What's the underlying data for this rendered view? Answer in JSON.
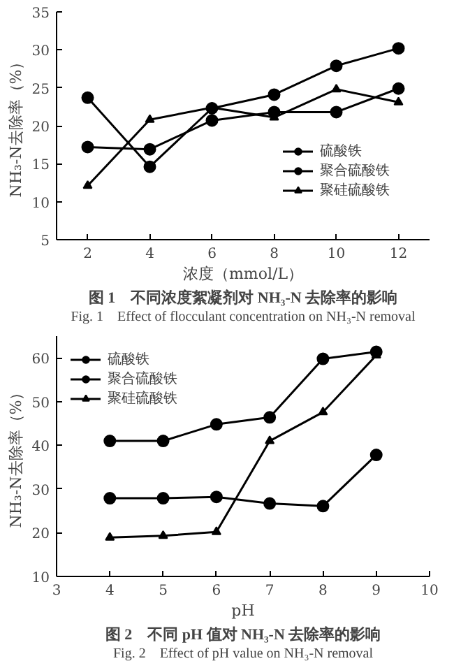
{
  "chart_data": [
    {
      "type": "line",
      "xlabel": "浓度（mmol/L）",
      "ylabel": "NH₃-N去除率（%）",
      "x": [
        2,
        4,
        6,
        8,
        10,
        12
      ],
      "xlim": [
        1,
        13
      ],
      "xticks": [
        2,
        4,
        6,
        8,
        10,
        12
      ],
      "ylim": [
        5,
        35
      ],
      "yticks": [
        5,
        10,
        15,
        20,
        25,
        30,
        35
      ],
      "grid": false,
      "legend": "right",
      "line_style": "solid",
      "series": [
        {
          "name": "硫酸铁",
          "color": "#000000",
          "marker": "circle",
          "values": [
            23.7,
            14.6,
            22.3,
            24.1,
            27.9,
            30.2
          ]
        },
        {
          "name": "聚合硫酸铁",
          "color": "#000000",
          "marker": "circle",
          "values": [
            17.2,
            16.9,
            20.7,
            21.8,
            21.8,
            24.9
          ]
        },
        {
          "name": "聚硅硫酸铁",
          "color": "#000000",
          "marker": "triangle",
          "values": [
            12.1,
            20.8,
            22.4,
            21.1,
            24.8,
            23.1
          ]
        }
      ],
      "annotations": [
        "图 1　不同浓度絮凝剂对 NH₃-N 去除率的影响",
        "Fig. 1　Effect of flocculant concentration on NH₃-N removal"
      ]
    },
    {
      "type": "line",
      "xlabel": "pH",
      "ylabel": "NH₃-N去除率（%）",
      "x": [
        4,
        5,
        6,
        7,
        8,
        9
      ],
      "xlim": [
        3,
        10
      ],
      "xticks": [
        3,
        4,
        5,
        6,
        7,
        8,
        9,
        10
      ],
      "ylim": [
        10,
        65
      ],
      "yticks": [
        10,
        20,
        30,
        40,
        50,
        60
      ],
      "grid": false,
      "legend": "top left",
      "line_style": "solid",
      "series": [
        {
          "name": "硫酸铁",
          "color": "#000000",
          "marker": "circle",
          "values": [
            41,
            41,
            44.8,
            46.4,
            59.8,
            61.4
          ]
        },
        {
          "name": "聚合硫酸铁",
          "color": "#000000",
          "marker": "circle",
          "values": [
            27.9,
            27.9,
            28.2,
            26.7,
            26.1,
            37.8
          ]
        },
        {
          "name": "聚硅硫酸铁",
          "color": "#000000",
          "marker": "triangle",
          "values": [
            18.9,
            19.3,
            20.2,
            41,
            47.6,
            60.6
          ]
        }
      ],
      "annotations": [
        "图 2　不同 pH 值对 NH₃-N 去除率的影响",
        "Fig. 2　Effect of pH value on NH₃-N removal"
      ]
    }
  ]
}
